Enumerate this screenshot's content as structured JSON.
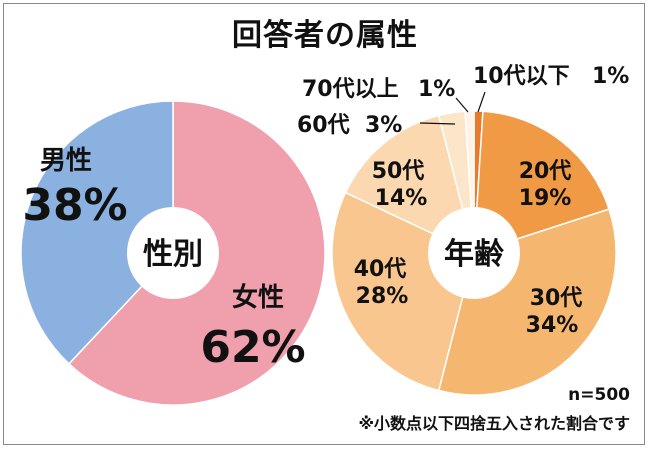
{
  "title": "回答者の属性",
  "note_n": "n=500",
  "note_rounding": "※小数点以下四捨五入された割合です",
  "chart_data": [
    {
      "type": "pie",
      "center_label": "性別",
      "slices": [
        {
          "label": "女性",
          "value": 62,
          "value_text": "62%",
          "color": "#f0a0ad"
        },
        {
          "label": "男性",
          "value": 38,
          "value_text": "38%",
          "color": "#8ab1e0"
        }
      ]
    },
    {
      "type": "pie",
      "center_label": "年齢",
      "slices": [
        {
          "label": "10代以下",
          "value": 1,
          "value_text": "1%",
          "color": "#e8792d"
        },
        {
          "label": "20代",
          "value": 19,
          "value_text": "19%",
          "color": "#f19a45"
        },
        {
          "label": "30代",
          "value": 34,
          "value_text": "34%",
          "color": "#f5b76f"
        },
        {
          "label": "40代",
          "value": 28,
          "value_text": "28%",
          "color": "#f8c68e"
        },
        {
          "label": "50代",
          "value": 14,
          "value_text": "14%",
          "color": "#fbd8b0"
        },
        {
          "label": "60代",
          "value": 3,
          "value_text": "3%",
          "color": "#fce6ca"
        },
        {
          "label": "70代以上",
          "value": 1,
          "value_text": "1%",
          "color": "#fef3e4"
        }
      ]
    }
  ]
}
